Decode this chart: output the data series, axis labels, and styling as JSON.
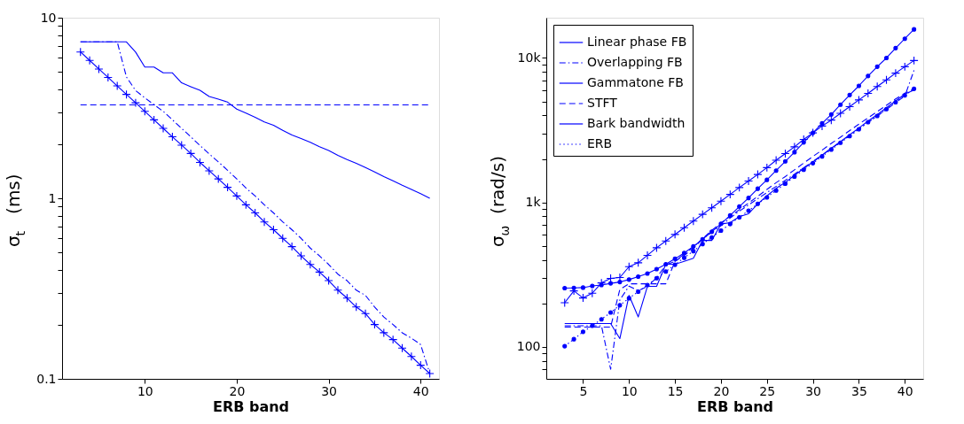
{
  "chart_data": [
    {
      "type": "line",
      "xlabel": "ERB band",
      "ylabel": "σ$_{t}$  (ms)",
      "log": "y",
      "grid": false,
      "legend": false,
      "xlim": [
        1,
        42
      ],
      "xticks": [
        10,
        20,
        30,
        40
      ],
      "ylim": [
        0.1,
        10
      ],
      "yticks": [
        0.1,
        {
          "value": 0.2,
          "label": null
        },
        {
          "value": 0.3,
          "label": null
        },
        {
          "value": 0.4,
          "label": null
        },
        {
          "value": 0.5,
          "label": null
        },
        {
          "value": 0.6,
          "label": null
        },
        {
          "value": 0.7,
          "label": null
        },
        {
          "value": 0.8,
          "label": null
        },
        {
          "value": 0.9,
          "label": null
        },
        1,
        {
          "value": 2,
          "label": null
        },
        {
          "value": 3,
          "label": null
        },
        {
          "value": 4,
          "label": null
        },
        {
          "value": 5,
          "label": null
        },
        {
          "value": 6,
          "label": null
        },
        {
          "value": 7,
          "label": null
        },
        {
          "value": 8,
          "label": null
        },
        {
          "value": 9,
          "label": null
        },
        10
      ],
      "x": [
        3,
        4,
        5,
        6,
        7,
        8,
        9,
        10,
        11,
        12,
        13,
        14,
        15,
        16,
        17,
        18,
        19,
        20,
        21,
        22,
        23,
        24,
        25,
        26,
        27,
        28,
        29,
        30,
        31,
        32,
        33,
        34,
        35,
        36,
        37,
        38,
        39,
        40,
        41
      ],
      "series": [
        {
          "color": "#0000ff",
          "line_style": "solid",
          "marker": "none",
          "values": [
            7.35,
            7.35,
            7.35,
            7.35,
            7.35,
            7.35,
            6.45,
            5.33,
            5.33,
            4.95,
            4.95,
            4.36,
            4.15,
            3.96,
            3.66,
            3.54,
            3.41,
            3.12,
            2.96,
            2.81,
            2.65,
            2.54,
            2.38,
            2.24,
            2.14,
            2.04,
            1.93,
            1.84,
            1.73,
            1.64,
            1.56,
            1.48,
            1.4,
            1.32,
            1.25,
            1.18,
            1.12,
            1.06,
            1.0
          ]
        },
        {
          "color": "#0000ff",
          "line_style": "dashdot",
          "marker": "none",
          "values": [
            7.35,
            7.35,
            7.35,
            7.35,
            7.35,
            4.7,
            3.95,
            3.6,
            3.3,
            3.03,
            2.72,
            2.44,
            2.19,
            1.96,
            1.76,
            1.59,
            1.43,
            1.28,
            1.14,
            1.03,
            0.92,
            0.83,
            0.74,
            0.67,
            0.6,
            0.53,
            0.48,
            0.43,
            0.38,
            0.35,
            0.31,
            0.29,
            0.25,
            0.22,
            0.2,
            0.18,
            0.168,
            0.155,
            0.107
          ]
        },
        {
          "color": "#0000ff",
          "line_style": "solid",
          "marker": "cross",
          "values": [
            6.46,
            5.8,
            5.2,
            4.67,
            4.19,
            3.76,
            3.38,
            3.03,
            2.72,
            2.44,
            2.19,
            1.97,
            1.77,
            1.58,
            1.42,
            1.28,
            1.15,
            1.03,
            0.92,
            0.83,
            0.74,
            0.67,
            0.6,
            0.54,
            0.48,
            0.43,
            0.39,
            0.35,
            0.31,
            0.28,
            0.25,
            0.23,
            0.2,
            0.18,
            0.165,
            0.148,
            0.133,
            0.119,
            0.107
          ]
        },
        {
          "color": "#0000ff",
          "line_style": "dashed",
          "marker": "none",
          "x": [
            3,
            41
          ],
          "values": [
            3.29,
            3.29
          ]
        }
      ]
    },
    {
      "type": "line",
      "xlabel": "ERB band",
      "ylabel": "σ$_{ω}$  (rad/s)",
      "log": "y",
      "grid": false,
      "legend": "top left",
      "xlim": [
        1,
        42
      ],
      "xticks": [
        5,
        10,
        15,
        20,
        25,
        30,
        35,
        40
      ],
      "ylim": [
        60,
        19000
      ],
      "yticks": [
        {
          "value": 70,
          "label": null
        },
        {
          "value": 80,
          "label": null
        },
        {
          "value": 90,
          "label": null
        },
        100,
        {
          "value": 200,
          "label": null
        },
        {
          "value": 300,
          "label": null
        },
        {
          "value": 400,
          "label": null
        },
        {
          "value": 500,
          "label": null
        },
        {
          "value": 600,
          "label": null
        },
        {
          "value": 700,
          "label": null
        },
        {
          "value": 800,
          "label": null
        },
        {
          "value": 900,
          "label": null
        },
        {
          "value": 1000,
          "label": "1k"
        },
        {
          "value": 2000,
          "label": null
        },
        {
          "value": 3000,
          "label": null
        },
        {
          "value": 4000,
          "label": null
        },
        {
          "value": 5000,
          "label": null
        },
        {
          "value": 6000,
          "label": null
        },
        {
          "value": 7000,
          "label": null
        },
        {
          "value": 8000,
          "label": null
        },
        {
          "value": 9000,
          "label": null
        },
        {
          "value": 10000,
          "label": "10k"
        }
      ],
      "x": [
        3,
        4,
        5,
        6,
        7,
        8,
        9,
        10,
        11,
        12,
        13,
        14,
        15,
        16,
        17,
        18,
        19,
        20,
        21,
        22,
        23,
        24,
        25,
        26,
        27,
        28,
        29,
        30,
        31,
        32,
        33,
        34,
        35,
        36,
        37,
        38,
        39,
        40,
        41
      ],
      "series": [
        {
          "name": "Linear phase FB",
          "color": "#0000ff",
          "line_style": "solid",
          "marker": "none",
          "values": [
            145,
            145,
            145,
            145,
            145,
            145,
            114,
            227,
            161,
            262,
            262,
            373,
            373,
            391,
            410,
            545,
            545,
            708,
            725,
            797,
            835,
            977,
            1110,
            1250,
            1375,
            1540,
            1720,
            1905,
            2125,
            2370,
            2640,
            2940,
            3275,
            3660,
            4050,
            4520,
            5040,
            5620,
            6000
          ]
        },
        {
          "name": "Overlapping FB",
          "color": "#0000ff",
          "line_style": "dashdot",
          "marker": "none",
          "values": [
            140,
            140,
            140,
            140,
            140,
            70,
            211,
            263,
            245,
            262,
            300,
            370,
            390,
            440,
            490,
            560,
            620,
            690,
            780,
            870,
            960,
            1060,
            1170,
            1290,
            1420,
            1570,
            1740,
            1920,
            2130,
            2360,
            2620,
            2900,
            3220,
            3580,
            3960,
            4400,
            4900,
            5450,
            8200
          ]
        },
        {
          "name": "Gammatone FB",
          "color": "#0000ff",
          "line_style": "solid",
          "marker": "cross",
          "values": [
            202,
            244,
            218,
            235,
            277,
            298,
            302,
            359,
            382,
            430,
            485,
            540,
            600,
            668,
            742,
            827,
            918,
            1020,
            1136,
            1267,
            1406,
            1561,
            1740,
            1960,
            2176,
            2425,
            2730,
            3030,
            3377,
            3714,
            4140,
            4600,
            5124,
            5690,
            6340,
            7050,
            7850,
            8700,
            9600
          ]
        },
        {
          "name": "STFT",
          "color": "#0000ff",
          "line_style": "dashed",
          "marker": "none",
          "values": [
            137,
            137,
            137,
            137,
            137,
            137,
            250,
            273,
            273,
            273,
            273,
            273,
            390,
            430,
            480,
            560,
            640,
            720,
            800,
            890,
            990,
            1100,
            1230,
            1370,
            1510,
            1680,
            1870,
            2080,
            2300,
            2560,
            2830,
            3140,
            3480,
            3850,
            4250,
            4700,
            5200,
            5700,
            6100
          ]
        },
        {
          "name": "Bark bandwidth",
          "color": "#0000ff",
          "line_style": "solid",
          "marker": "circle",
          "values": [
            255,
            256,
            257,
            264,
            268,
            275,
            281,
            292,
            306,
            322,
            345,
            373,
            407,
            447,
            496,
            556,
            626,
            711,
            812,
            936,
            1073,
            1244,
            1433,
            1660,
            1923,
            2228,
            2604,
            3030,
            3527,
            4060,
            4750,
            5540,
            6410,
            7500,
            8700,
            10000,
            11700,
            13600,
            15780
          ]
        },
        {
          "name": "ERB",
          "color": "#0000ff",
          "line_style": "dotted",
          "marker": "circle",
          "values": [
            101,
            113,
            127,
            140,
            155,
            173,
            194,
            217,
            241,
            268,
            299,
            332,
            370,
            414,
            460,
            515,
            572,
            638,
            708,
            789,
            876,
            977,
            1084,
            1209,
            1348,
            1510,
            1684,
            1868,
            2083,
            2323,
            2591,
            2879,
            3211,
            3591,
            3968,
            4427,
            4937,
            5505,
            6113
          ]
        }
      ]
    }
  ]
}
